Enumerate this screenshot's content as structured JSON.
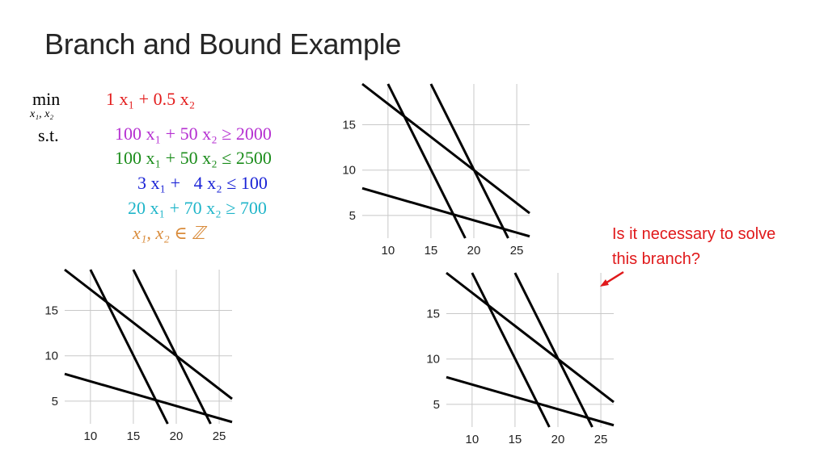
{
  "title": "Branch and Bound Example",
  "problem": {
    "min_label": "min",
    "min_vars": "x₁, x₂",
    "st_label": "s.t.",
    "objective": {
      "text": "1 x₁ + 0.5 x₂",
      "color": "#e31c1c"
    },
    "constraints": [
      {
        "text": "100 x₁ + 50 x₂ ≥ 2000",
        "color": "#b52fd1"
      },
      {
        "text": "100 x₁ + 50 x₂ ≤ 2500",
        "color": "#1a8c1a"
      },
      {
        "text": "3 x₁ +   4 x₂ ≤ 100",
        "color": "#1a23d6"
      },
      {
        "text": "20 x₁ + 70 x₂ ≥ 700",
        "color": "#1fb5c9"
      },
      {
        "text": "x₁, x₂ ∈ ℤ",
        "color": "#d98b3a"
      }
    ]
  },
  "question": {
    "text": "Is it necessary to solve this branch?",
    "color": "#e0191b"
  },
  "chart_data": [
    {
      "type": "line",
      "x_ticks": [
        "10",
        "15",
        "20",
        "25"
      ],
      "y_ticks": [
        "5",
        "10",
        "15"
      ],
      "xlim": [
        7,
        26.5
      ],
      "ylim": [
        2.5,
        19.5
      ],
      "series": [
        {
          "x": [
            7,
            26.5
          ],
          "y": [
            19.5,
            5.25
          ]
        },
        {
          "x": [
            10,
            19
          ],
          "y": [
            19.5,
            2.5
          ]
        },
        {
          "x": [
            15,
            24
          ],
          "y": [
            19.5,
            2.5
          ]
        },
        {
          "x": [
            7,
            26.5
          ],
          "y": [
            8,
            2.7
          ]
        }
      ]
    },
    {
      "type": "line",
      "x_ticks": [
        "10",
        "15",
        "20",
        "25"
      ],
      "y_ticks": [
        "5",
        "10",
        "15"
      ],
      "xlim": [
        7,
        26.5
      ],
      "ylim": [
        2.5,
        19.5
      ],
      "series": [
        {
          "x": [
            7,
            26.5
          ],
          "y": [
            19.5,
            5.25
          ]
        },
        {
          "x": [
            10,
            19
          ],
          "y": [
            19.5,
            2.5
          ]
        },
        {
          "x": [
            15,
            24
          ],
          "y": [
            19.5,
            2.5
          ]
        },
        {
          "x": [
            7,
            26.5
          ],
          "y": [
            8,
            2.7
          ]
        }
      ]
    },
    {
      "type": "line",
      "x_ticks": [
        "10",
        "15",
        "20",
        "25"
      ],
      "y_ticks": [
        "5",
        "10",
        "15"
      ],
      "xlim": [
        7,
        26.5
      ],
      "ylim": [
        2.5,
        19.5
      ],
      "series": [
        {
          "x": [
            7,
            26.5
          ],
          "y": [
            19.5,
            5.25
          ]
        },
        {
          "x": [
            10,
            19
          ],
          "y": [
            19.5,
            2.5
          ]
        },
        {
          "x": [
            15,
            24
          ],
          "y": [
            19.5,
            2.5
          ]
        },
        {
          "x": [
            7,
            26.5
          ],
          "y": [
            8,
            2.7
          ]
        }
      ]
    }
  ]
}
